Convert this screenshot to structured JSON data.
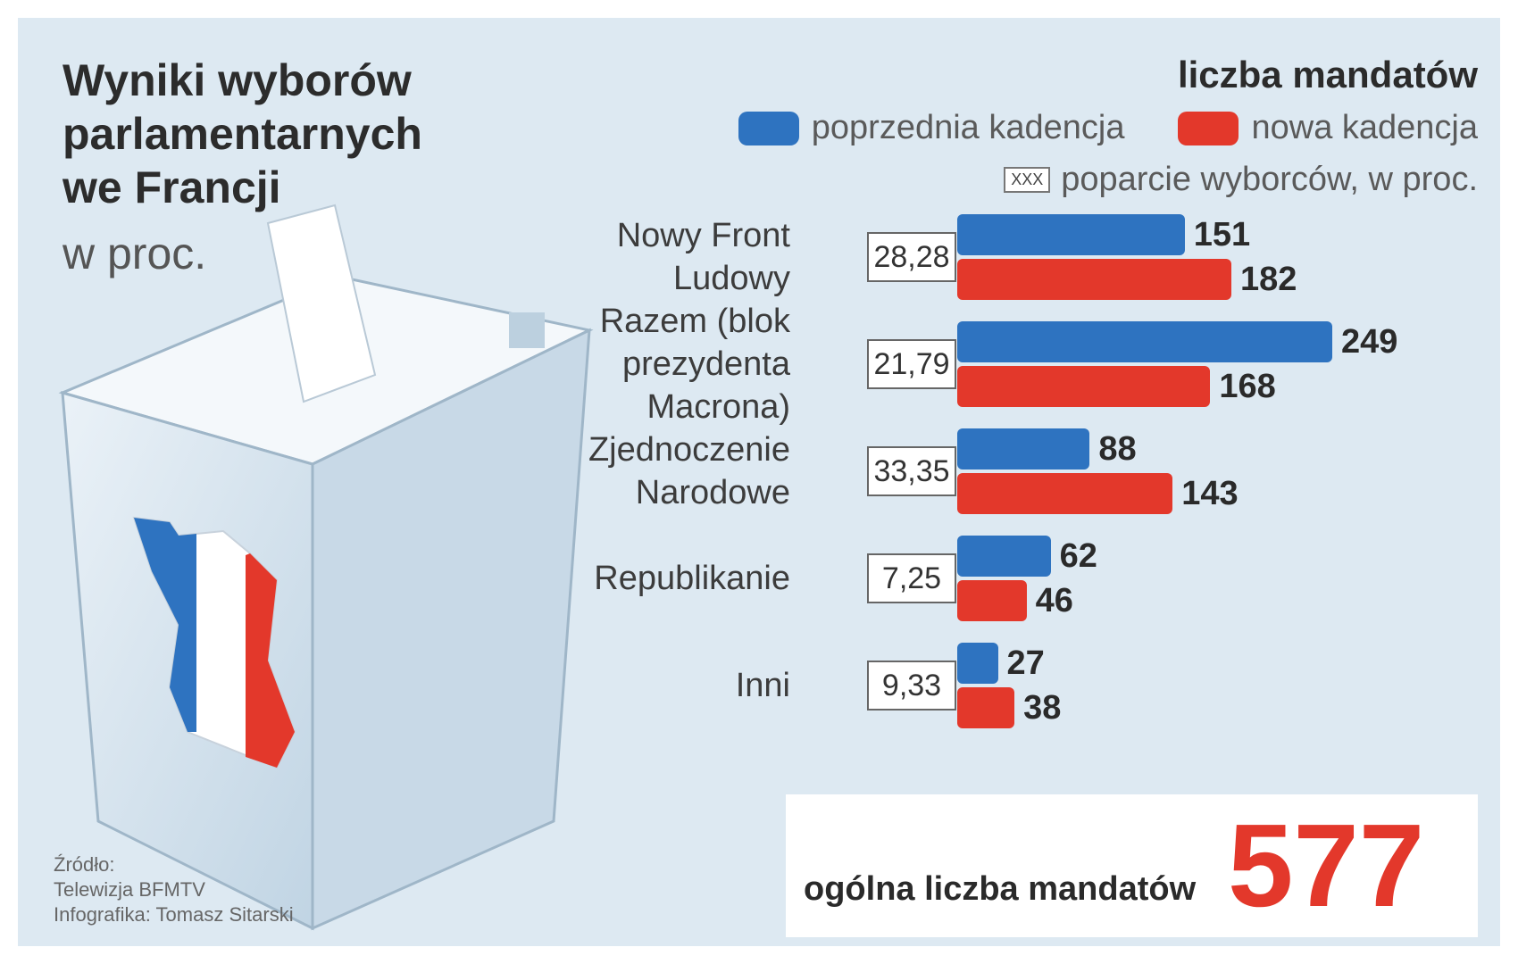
{
  "title_lines": [
    "Wyniki wyborów",
    "parlamentarnych",
    "we Francji"
  ],
  "subtitle": "w proc.",
  "legend": {
    "title": "liczba mandatów",
    "previous": "poprzednia kadencja",
    "new": "nowa kadencja",
    "box_sample": "XXX",
    "box_label": "poparcie wyborców, w proc."
  },
  "colors": {
    "previous": "#2e73c0",
    "new": "#e3382b"
  },
  "source_lines": [
    "Źródło:",
    "Telewizja BFMTV",
    "Infografika: Tomasz Sitarski"
  ],
  "total": {
    "label": "ogólna liczba mandatów",
    "value": "577"
  },
  "chart_data": {
    "type": "bar",
    "orientation": "horizontal",
    "categories": [
      "Nowy Front Ludowy",
      "Razem (blok prezydenta Macrona)",
      "Zjednoczenie Narodowe",
      "Republikanie",
      "Inni"
    ],
    "support_percent": [
      "28,28",
      "21,79",
      "33,35",
      "7,25",
      "9,33"
    ],
    "series": [
      {
        "name": "poprzednia kadencja",
        "values": [
          151,
          249,
          88,
          62,
          27
        ]
      },
      {
        "name": "nowa kadencja",
        "values": [
          182,
          168,
          143,
          46,
          38
        ]
      }
    ]
  }
}
